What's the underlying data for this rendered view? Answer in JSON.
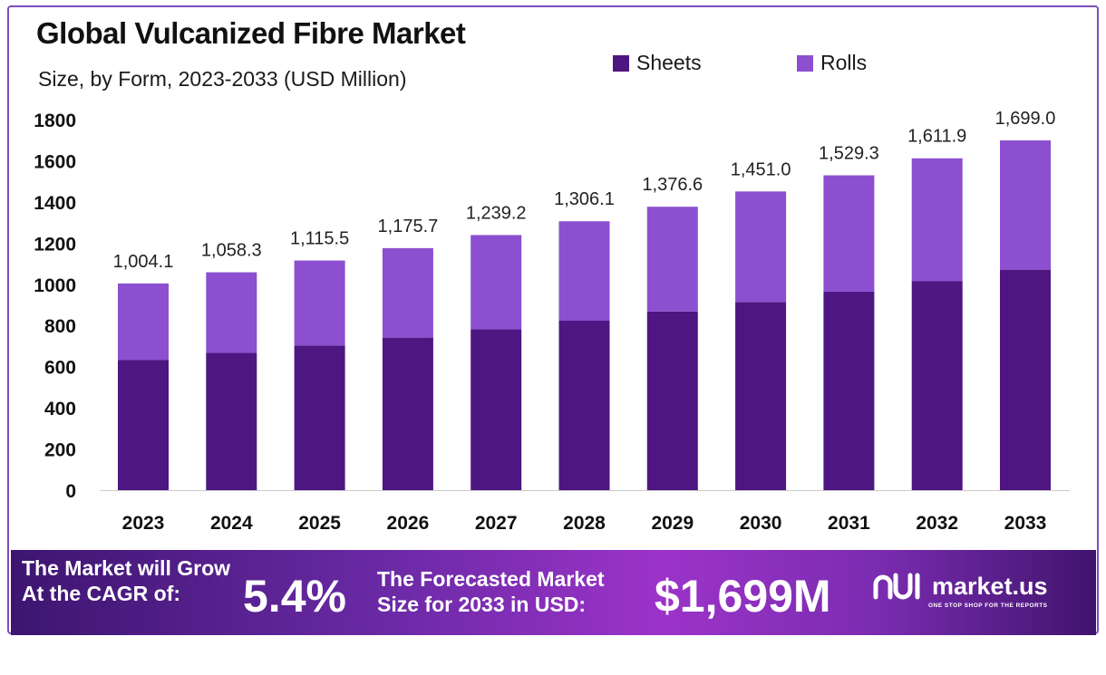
{
  "header": {
    "title": "Global Vulcanized Fibre Market",
    "subtitle": "Size, by Form, 2023-2033 (USD Million)"
  },
  "legend": {
    "sheets_label": "Sheets",
    "rolls_label": "Rolls"
  },
  "colors": {
    "sheets": "#4e1681",
    "rolls": "#8b4fd0",
    "frame": "#7b4fc0"
  },
  "chart_data": {
    "type": "bar",
    "stacked": true,
    "categories": [
      "2023",
      "2024",
      "2025",
      "2026",
      "2027",
      "2028",
      "2029",
      "2030",
      "2031",
      "2032",
      "2033"
    ],
    "series": [
      {
        "name": "Sheets",
        "values": [
          633,
          667,
          703,
          741,
          781,
          823,
          868,
          914,
          964,
          1016,
          1071
        ]
      },
      {
        "name": "Rolls",
        "values": [
          371.1,
          391.3,
          412.5,
          434.7,
          458.2,
          483.1,
          508.6,
          537.0,
          565.3,
          595.9,
          628.0
        ]
      }
    ],
    "totals": [
      1004.1,
      1058.3,
      1115.5,
      1175.7,
      1239.2,
      1306.1,
      1376.6,
      1451.0,
      1529.3,
      1611.9,
      1699.0
    ],
    "total_labels": [
      "1,004.1",
      "1,058.3",
      "1,115.5",
      "1,175.7",
      "1,239.2",
      "1,306.1",
      "1,376.6",
      "1,451.0",
      "1,529.3",
      "1,611.9",
      "1,699.0"
    ],
    "y_ticks": [
      0,
      200,
      400,
      600,
      800,
      1000,
      1200,
      1400,
      1600,
      1800
    ],
    "ylim": [
      0,
      1800
    ],
    "title": "Global Vulcanized Fibre Market",
    "xlabel": "",
    "ylabel": "",
    "grid": false,
    "legend_position": "top-right"
  },
  "banner": {
    "cagr_label_line1": "The Market will Grow",
    "cagr_label_line2": "At the CAGR of:",
    "cagr_value": "5.4%",
    "size_label_line1": "The Forecasted Market",
    "size_label_line2": "Size for 2033 in USD:",
    "size_value": "$1,699M",
    "brand": "market.us",
    "brand_tagline": "ONE STOP SHOP FOR THE REPORTS",
    "brand_icon": "market-us-logo-icon"
  }
}
